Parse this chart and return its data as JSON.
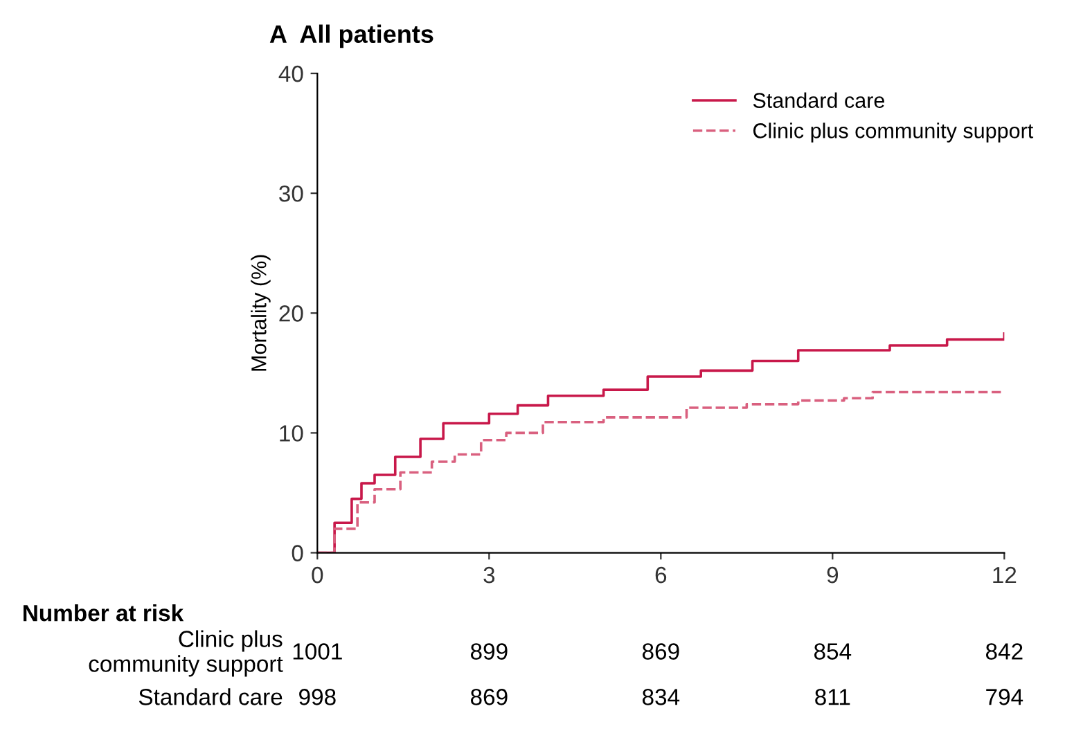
{
  "chart_data": {
    "type": "step",
    "title": "A  All patients",
    "ylabel": "Mortality (%)",
    "xlim": [
      0,
      12
    ],
    "ylim": [
      0,
      40
    ],
    "xticks": [
      0,
      3,
      6,
      9,
      12
    ],
    "yticks": [
      0,
      10,
      20,
      30,
      40
    ],
    "grid": false,
    "legend": "top right",
    "series": [
      {
        "name": "Standard care",
        "color": "#c8184a",
        "line_style": "solid",
        "x": [
          0,
          0.3,
          0.6,
          0.77,
          1.0,
          1.36,
          1.8,
          2.2,
          3.0,
          3.5,
          4.03,
          5.0,
          5.77,
          6.7,
          7.6,
          8.4,
          9.1,
          10.0,
          11.0,
          12.0
        ],
        "values": [
          0,
          2.5,
          4.5,
          5.8,
          6.5,
          8.0,
          9.5,
          10.8,
          11.6,
          12.3,
          13.1,
          13.6,
          14.7,
          15.2,
          16.0,
          16.9,
          16.9,
          17.3,
          17.8,
          18.3
        ]
      },
      {
        "name": "Clinic plus community support",
        "color": "#d9607f",
        "line_style": "dashed",
        "x": [
          0,
          0.3,
          0.7,
          1.0,
          1.45,
          2.0,
          2.4,
          2.86,
          3.3,
          3.94,
          5.0,
          6.45,
          7.5,
          8.4,
          9.2,
          9.7,
          12.0
        ],
        "values": [
          0,
          2.0,
          4.2,
          5.3,
          6.7,
          7.6,
          8.2,
          9.4,
          10.0,
          10.9,
          11.3,
          12.1,
          12.4,
          12.7,
          12.9,
          13.4,
          13.4
        ]
      }
    ],
    "annotations": [
      "Number at risk",
      "Clinic plus\ncommunity support",
      "1001",
      "899",
      "869",
      "854",
      "842",
      "Standard care",
      "998",
      "869",
      "834",
      "811",
      "794"
    ]
  }
}
